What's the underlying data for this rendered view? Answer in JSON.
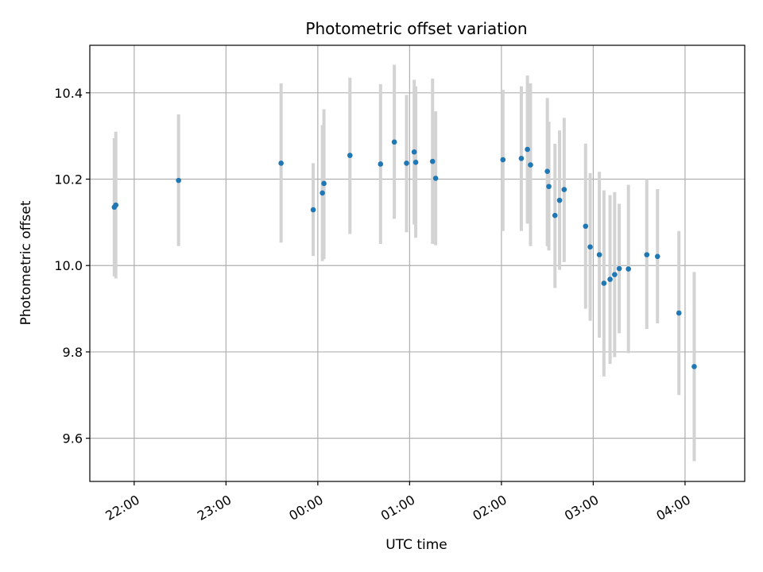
{
  "chart_data": {
    "type": "scatter",
    "title": "Photometric offset variation",
    "xlabel": "UTC time",
    "ylabel": "Photometric offset",
    "ylim": [
      9.5,
      10.51
    ],
    "xlim": [
      "21:31",
      "04:39"
    ],
    "x_ticks": [
      "22:00",
      "23:00",
      "00:00",
      "01:00",
      "02:00",
      "03:00",
      "04:00"
    ],
    "y_ticks": [
      "9.6",
      "9.8",
      "10.0",
      "10.2",
      "10.4"
    ],
    "grid": true,
    "colors": {
      "points": "#1f77b4",
      "errorbars": "#d3d3d3",
      "grid": "#b0b0b0"
    },
    "series": [
      {
        "points": [
          {
            "x": "21:47",
            "y": 10.135,
            "low": 9.975,
            "high": 10.295
          },
          {
            "x": "21:48",
            "y": 10.14,
            "low": 9.97,
            "high": 10.31
          },
          {
            "x": "22:29",
            "y": 10.197,
            "low": 10.045,
            "high": 10.35
          },
          {
            "x": "23:36",
            "y": 10.237,
            "low": 10.053,
            "high": 10.422
          },
          {
            "x": "23:57",
            "y": 10.129,
            "low": 10.022,
            "high": 10.237
          },
          {
            "x": "00:03",
            "y": 10.168,
            "low": 10.01,
            "high": 10.325
          },
          {
            "x": "00:04",
            "y": 10.19,
            "low": 10.015,
            "high": 10.362
          },
          {
            "x": "00:21",
            "y": 10.255,
            "low": 10.073,
            "high": 10.435
          },
          {
            "x": "00:41",
            "y": 10.235,
            "low": 10.05,
            "high": 10.42
          },
          {
            "x": "00:50",
            "y": 10.286,
            "low": 10.108,
            "high": 10.465
          },
          {
            "x": "00:58",
            "y": 10.237,
            "low": 10.077,
            "high": 10.395
          },
          {
            "x": "01:03",
            "y": 10.263,
            "low": 10.095,
            "high": 10.43
          },
          {
            "x": "01:04",
            "y": 10.239,
            "low": 10.064,
            "high": 10.415
          },
          {
            "x": "01:15",
            "y": 10.241,
            "low": 10.05,
            "high": 10.433
          },
          {
            "x": "01:17",
            "y": 10.202,
            "low": 10.047,
            "high": 10.357
          },
          {
            "x": "02:01",
            "y": 10.245,
            "low": 10.08,
            "high": 10.407
          },
          {
            "x": "02:13",
            "y": 10.248,
            "low": 10.08,
            "high": 10.415
          },
          {
            "x": "02:17",
            "y": 10.269,
            "low": 10.097,
            "high": 10.44
          },
          {
            "x": "02:19",
            "y": 10.233,
            "low": 10.045,
            "high": 10.422
          },
          {
            "x": "02:30",
            "y": 10.218,
            "low": 10.045,
            "high": 10.388
          },
          {
            "x": "02:31",
            "y": 10.183,
            "low": 10.035,
            "high": 10.333
          },
          {
            "x": "02:35",
            "y": 10.116,
            "low": 9.948,
            "high": 10.282
          },
          {
            "x": "02:38",
            "y": 10.151,
            "low": 9.99,
            "high": 10.313
          },
          {
            "x": "02:41",
            "y": 10.176,
            "low": 10.008,
            "high": 10.342
          },
          {
            "x": "02:55",
            "y": 10.091,
            "low": 9.9,
            "high": 10.282
          },
          {
            "x": "02:58",
            "y": 10.043,
            "low": 9.872,
            "high": 10.214
          },
          {
            "x": "03:04",
            "y": 10.025,
            "low": 9.833,
            "high": 10.217
          },
          {
            "x": "03:07",
            "y": 9.959,
            "low": 9.743,
            "high": 10.174
          },
          {
            "x": "03:11",
            "y": 9.968,
            "low": 9.772,
            "high": 10.163
          },
          {
            "x": "03:14",
            "y": 9.979,
            "low": 9.788,
            "high": 10.17
          },
          {
            "x": "03:17",
            "y": 9.993,
            "low": 9.843,
            "high": 10.143
          },
          {
            "x": "03:23",
            "y": 9.992,
            "low": 9.797,
            "high": 10.187
          },
          {
            "x": "03:35",
            "y": 10.025,
            "low": 9.853,
            "high": 10.2
          },
          {
            "x": "03:42",
            "y": 10.021,
            "low": 9.866,
            "high": 10.177
          },
          {
            "x": "03:56",
            "y": 9.89,
            "low": 9.7,
            "high": 10.08
          },
          {
            "x": "04:06",
            "y": 9.766,
            "low": 9.547,
            "high": 9.985
          }
        ]
      }
    ]
  }
}
